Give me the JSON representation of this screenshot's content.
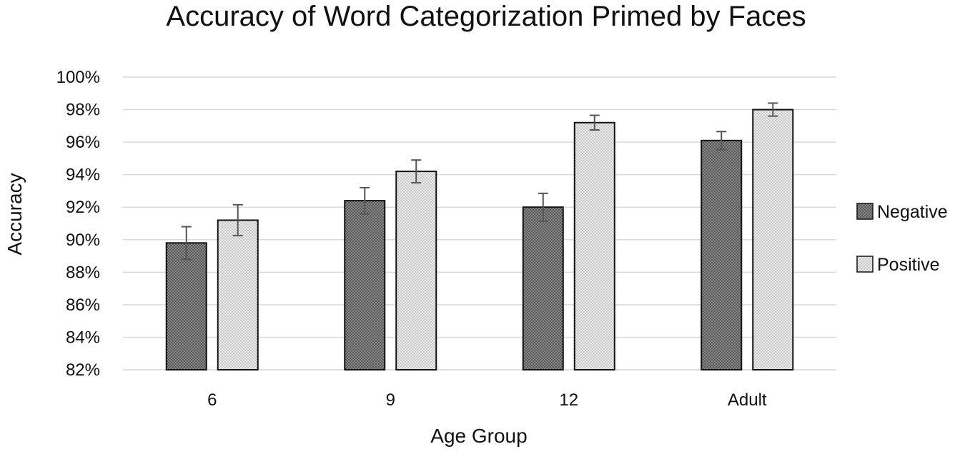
{
  "chart_data": {
    "type": "bar",
    "title": "Accuracy of Word Categorization Primed by Faces",
    "xlabel": "Age Group",
    "ylabel": "Accuracy",
    "ylim": [
      82,
      100
    ],
    "yticks": [
      "82%",
      "84%",
      "86%",
      "88%",
      "90%",
      "92%",
      "94%",
      "96%",
      "98%",
      "100%"
    ],
    "categories": [
      "6",
      "9",
      "12",
      "Adult"
    ],
    "series": [
      {
        "name": "Negative",
        "values": [
          89.8,
          92.4,
          92.0,
          96.1
        ],
        "errors": [
          1.0,
          0.8,
          0.85,
          0.55
        ],
        "color": "#8c8c8c"
      },
      {
        "name": "Positive",
        "values": [
          91.2,
          94.2,
          97.2,
          98.0
        ],
        "errors": [
          0.95,
          0.7,
          0.45,
          0.4
        ],
        "color": "#e3e3e3"
      }
    ],
    "grid": true,
    "legend_position": "right"
  }
}
